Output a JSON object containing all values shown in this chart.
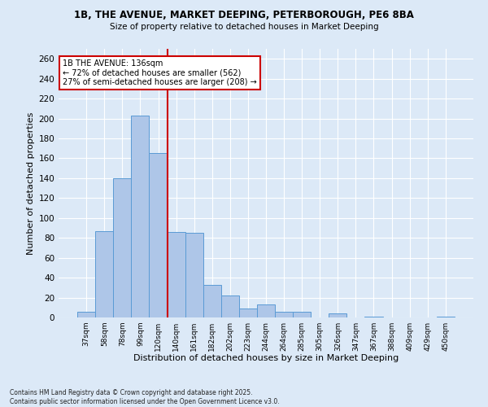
{
  "title_line1": "1B, THE AVENUE, MARKET DEEPING, PETERBOROUGH, PE6 8BA",
  "title_line2": "Size of property relative to detached houses in Market Deeping",
  "xlabel": "Distribution of detached houses by size in Market Deeping",
  "ylabel": "Number of detached properties",
  "footnote": "Contains HM Land Registry data © Crown copyright and database right 2025.\nContains public sector information licensed under the Open Government Licence v3.0.",
  "bin_labels": [
    "37sqm",
    "58sqm",
    "78sqm",
    "99sqm",
    "120sqm",
    "140sqm",
    "161sqm",
    "182sqm",
    "202sqm",
    "223sqm",
    "244sqm",
    "264sqm",
    "285sqm",
    "305sqm",
    "326sqm",
    "347sqm",
    "367sqm",
    "388sqm",
    "409sqm",
    "429sqm",
    "450sqm"
  ],
  "bar_values": [
    6,
    87,
    140,
    203,
    165,
    86,
    85,
    33,
    22,
    9,
    13,
    6,
    6,
    0,
    4,
    0,
    1,
    0,
    0,
    0,
    1
  ],
  "bar_color": "#aec6e8",
  "bar_edgecolor": "#5a9bd5",
  "vline_x": 4.5,
  "vline_color": "#cc0000",
  "annotation_text": "1B THE AVENUE: 136sqm\n← 72% of detached houses are smaller (562)\n27% of semi-detached houses are larger (208) →",
  "annotation_box_color": "#ffffff",
  "annotation_box_edgecolor": "#cc0000",
  "background_color": "#dce9f7",
  "grid_color": "#ffffff",
  "ylim": [
    0,
    270
  ],
  "yticks": [
    0,
    20,
    40,
    60,
    80,
    100,
    120,
    140,
    160,
    180,
    200,
    220,
    240,
    260
  ]
}
